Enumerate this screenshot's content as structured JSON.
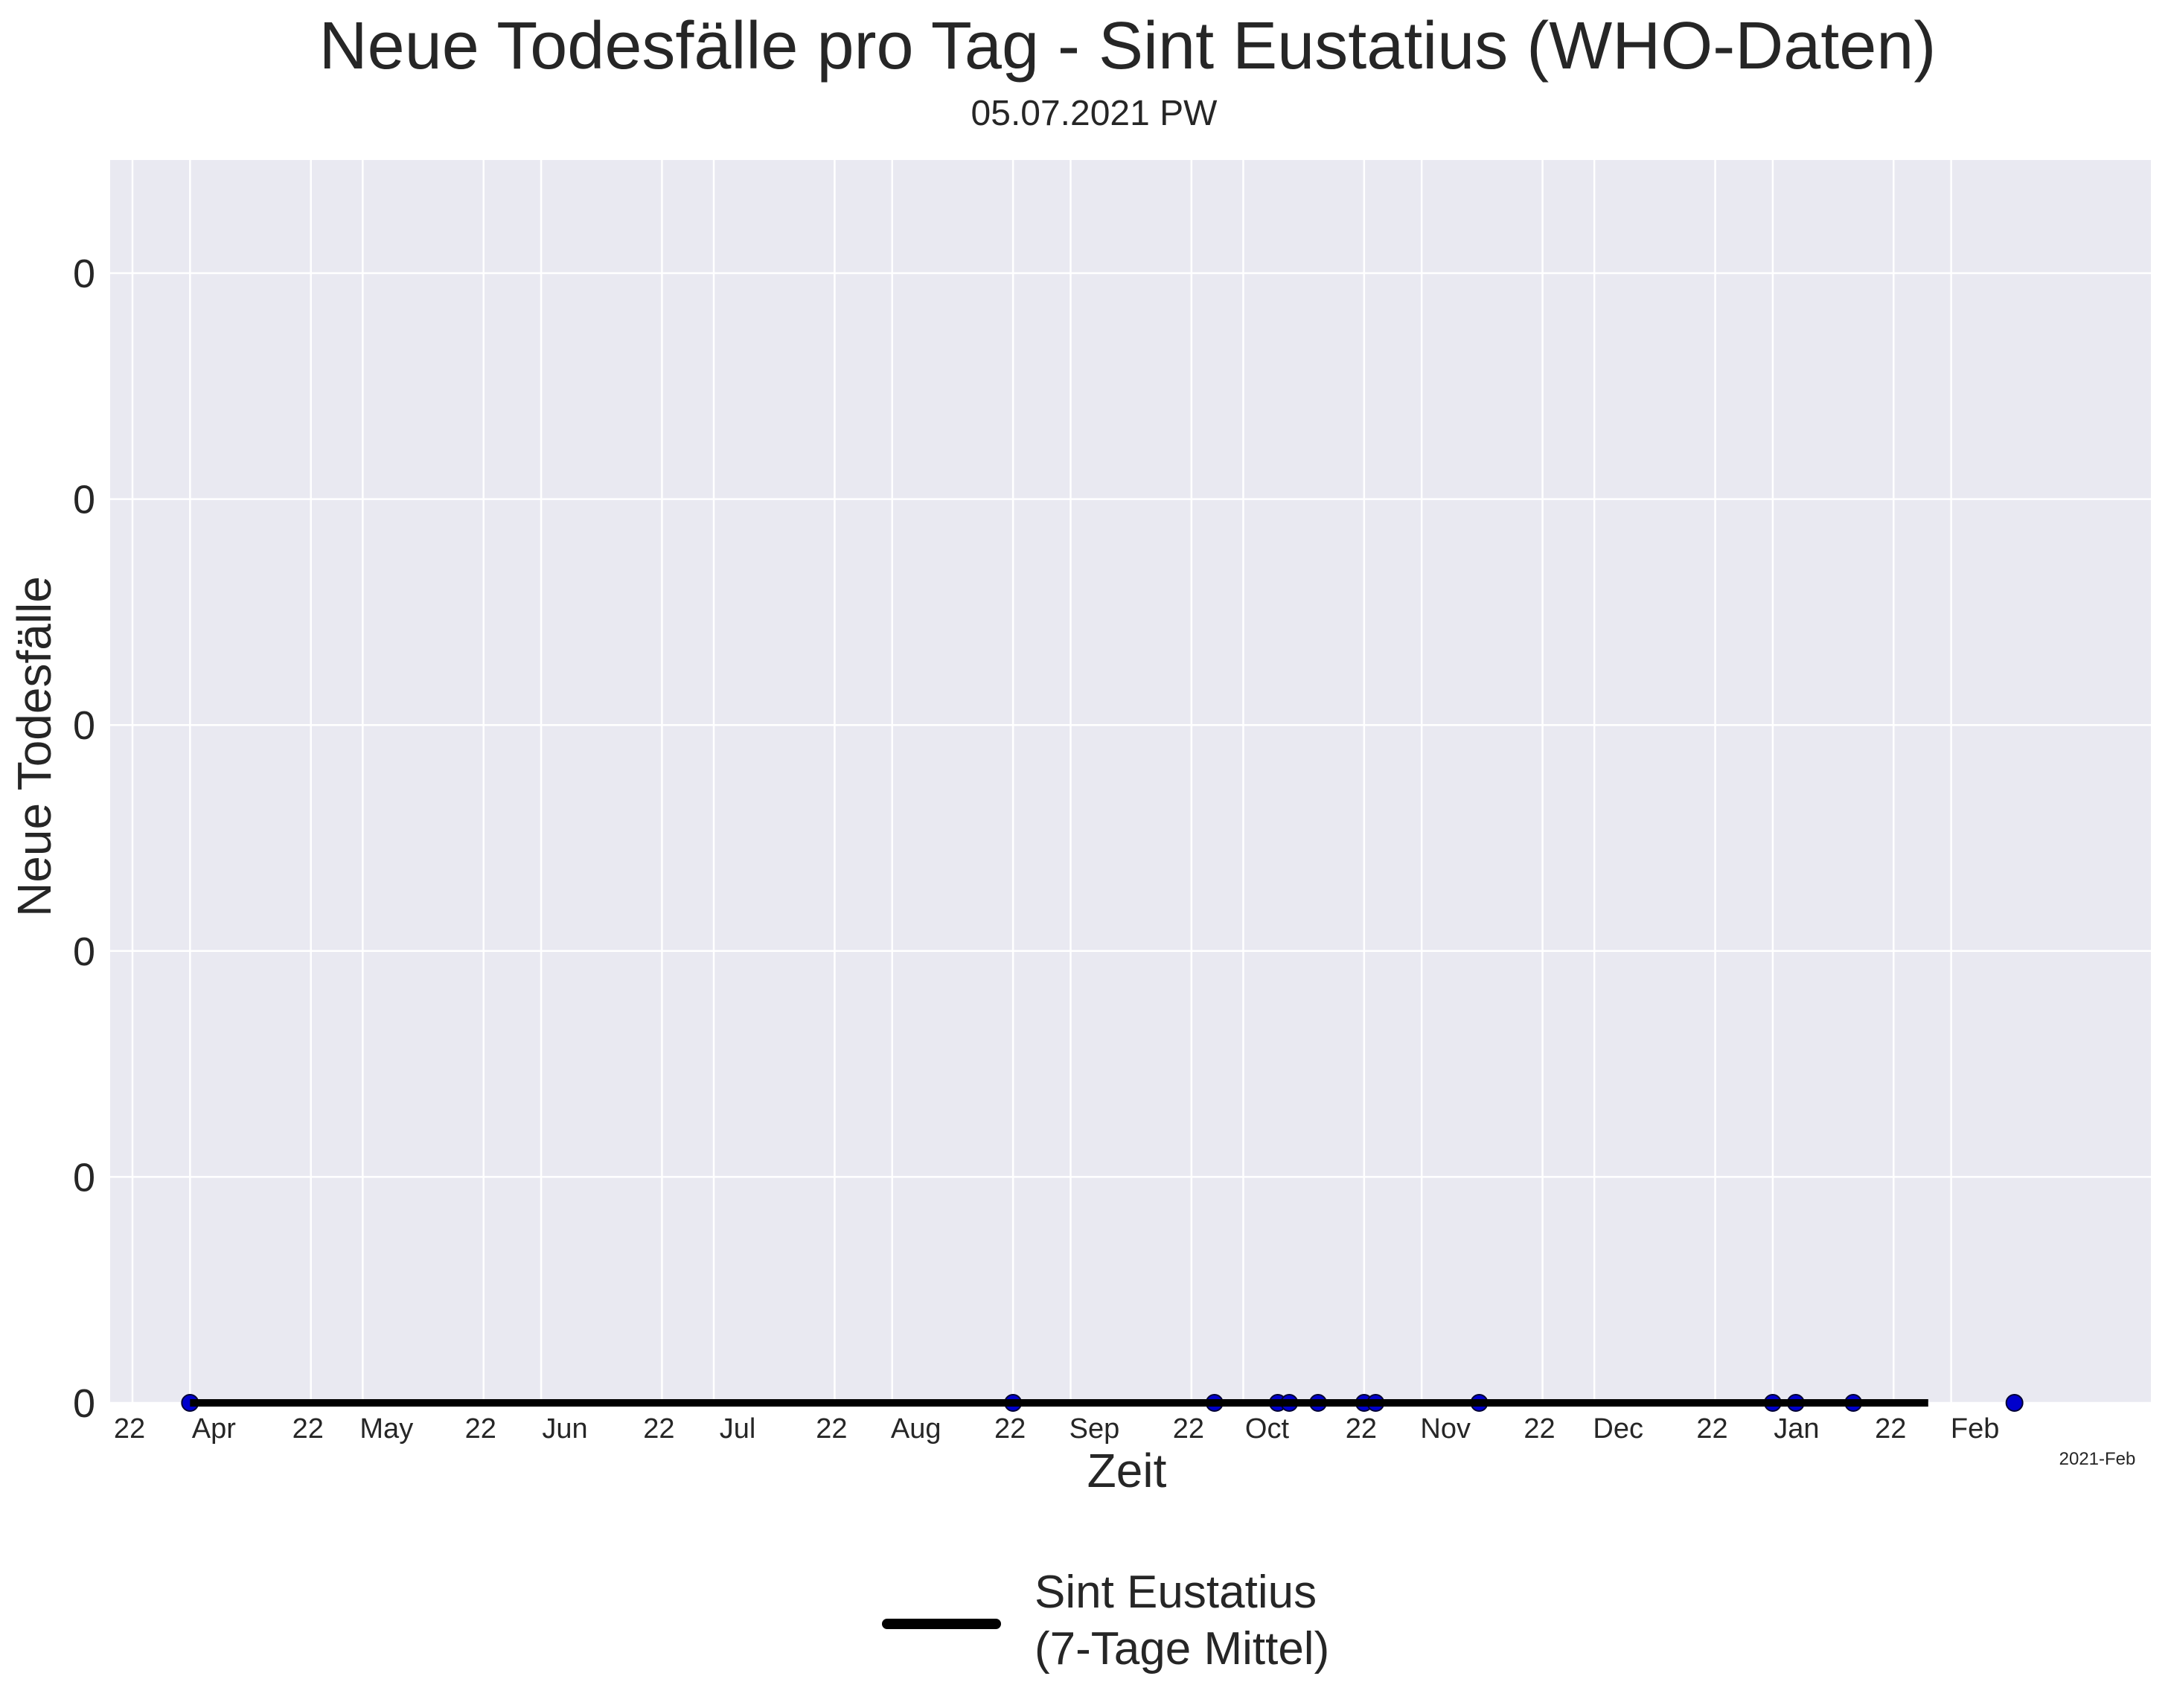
{
  "title": "Neue Todesfälle pro Tag - Sint Eustatius (WHO-Daten)",
  "subtitle": "05.07.2021 PW",
  "colors": {
    "plot_bg": "#e9e9f1",
    "grid": "#ffffff",
    "line": "#000000",
    "marker": "#0000cc"
  },
  "chart_data": {
    "type": "line",
    "title": "Neue Todesfälle pro Tag - Sint Eustatius (WHO-Daten)",
    "xlabel": "Zeit",
    "ylabel": "Neue Todesfälle",
    "grid": true,
    "legend_placement": "bottom-center",
    "xlim": [
      "2020-03-22",
      "2021-02-22"
    ],
    "ylim": [
      0,
      0.0275
    ],
    "y_ticks": [
      0,
      0.005,
      0.01,
      0.015,
      0.02,
      0.025
    ],
    "y_tick_labels": [
      "0",
      "0",
      "0",
      "0",
      "0",
      "0"
    ],
    "x_ticks": [
      {
        "label": "22",
        "date": "2020-03-22"
      },
      {
        "label": "Apr",
        "date": "2020-04-01"
      },
      {
        "label": "22",
        "date": "2020-04-22"
      },
      {
        "label": "May",
        "date": "2020-05-01"
      },
      {
        "label": "22",
        "date": "2020-05-22"
      },
      {
        "label": "Jun",
        "date": "2020-06-01"
      },
      {
        "label": "22",
        "date": "2020-06-22"
      },
      {
        "label": "Jul",
        "date": "2020-07-01"
      },
      {
        "label": "22",
        "date": "2020-07-22"
      },
      {
        "label": "Aug",
        "date": "2020-08-01"
      },
      {
        "label": "22",
        "date": "2020-08-22"
      },
      {
        "label": "Sep",
        "date": "2020-09-01"
      },
      {
        "label": "22",
        "date": "2020-09-22"
      },
      {
        "label": "Oct",
        "date": "2020-10-01"
      },
      {
        "label": "22",
        "date": "2020-10-22"
      },
      {
        "label": "Nov",
        "date": "2020-11-01"
      },
      {
        "label": "22",
        "date": "2020-11-22"
      },
      {
        "label": "Dec",
        "date": "2020-12-01"
      },
      {
        "label": "22",
        "date": "2020-12-22"
      },
      {
        "label": "Jan",
        "date": "2021-01-01"
      },
      {
        "label": "22",
        "date": "2021-01-22"
      },
      {
        "label": "Feb",
        "date": "2021-02-01"
      }
    ],
    "x_offset_label": "2021-Feb",
    "series": [
      {
        "name": "Sint Eustatius\n(7-Tage Mittel)",
        "style": "line",
        "x": [
          "2020-04-01",
          "2021-01-28"
        ],
        "y": [
          0,
          0
        ]
      },
      {
        "style": "scatter",
        "x": [
          "2020-04-01",
          "2020-08-22",
          "2020-09-26",
          "2020-10-07",
          "2020-10-09",
          "2020-10-14",
          "2020-10-22",
          "2020-10-24",
          "2020-11-11",
          "2021-01-01",
          "2021-01-05",
          "2021-01-15",
          "2021-02-12"
        ],
        "y": [
          0,
          0,
          0,
          0,
          0,
          0,
          0,
          0,
          0,
          0,
          0,
          0,
          0
        ]
      }
    ]
  }
}
